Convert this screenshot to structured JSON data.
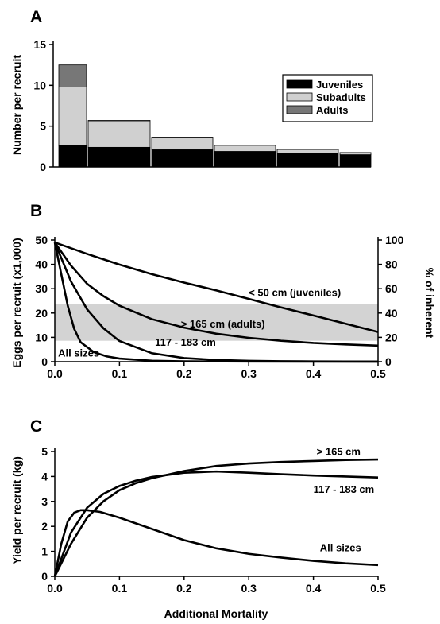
{
  "chart_data": [
    {
      "panel": "A",
      "type": "bar",
      "stacked": true,
      "ylabel": "Number per recruit",
      "ylim": [
        0,
        15
      ],
      "yticks": [
        0,
        5,
        10,
        15
      ],
      "categories": [
        "",
        "",
        "",
        "",
        "",
        ""
      ],
      "series": [
        {
          "name": "Juveniles",
          "color": "#000000",
          "values": [
            2.6,
            2.4,
            2.1,
            1.9,
            1.7,
            1.5
          ]
        },
        {
          "name": "Subadults",
          "color": "#d0d0d0",
          "values": [
            7.2,
            3.1,
            1.5,
            0.75,
            0.45,
            0.25
          ]
        },
        {
          "name": "Adults",
          "color": "#777777",
          "values": [
            2.7,
            0.2,
            0.05,
            0.03,
            0.02,
            0.01
          ]
        }
      ],
      "legend": "right"
    },
    {
      "panel": "B",
      "type": "line",
      "ylabel": "Eggs per recruit (x1,000)",
      "y2label": "% of inherent",
      "xlim": [
        0,
        0.5
      ],
      "xticks": [
        0.0,
        0.1,
        0.2,
        0.3,
        0.4,
        0.5
      ],
      "xtick_labels": [
        "0.0",
        "0.1",
        "0.2",
        "0.3",
        "0.4",
        "0.5"
      ],
      "ylim": [
        0,
        50
      ],
      "yticks": [
        0,
        10,
        20,
        30,
        40,
        50
      ],
      "y2ticks": [
        0,
        20,
        40,
        60,
        80,
        100
      ],
      "band": {
        "ymin": 8.6,
        "ymax": 23.8,
        "color": "#d3d3d3"
      },
      "series": [
        {
          "name": "< 50 cm (juveniles)",
          "x": [
            0,
            0.05,
            0.1,
            0.15,
            0.2,
            0.25,
            0.3,
            0.35,
            0.4,
            0.45,
            0.5
          ],
          "y": [
            49,
            44.3,
            39.9,
            36.0,
            32.5,
            29.3,
            25.8,
            22.3,
            19.0,
            15.6,
            12.2
          ]
        },
        {
          "name": "> 165 cm (adults)",
          "x": [
            0,
            0.025,
            0.05,
            0.075,
            0.1,
            0.15,
            0.2,
            0.25,
            0.3,
            0.35,
            0.4,
            0.45,
            0.5
          ],
          "y": [
            49,
            39.5,
            32.0,
            27.0,
            23.0,
            17.5,
            14.0,
            11.5,
            9.8,
            8.6,
            7.7,
            7.1,
            6.6
          ]
        },
        {
          "name": "117 - 183 cm",
          "x": [
            0,
            0.025,
            0.05,
            0.075,
            0.1,
            0.15,
            0.2,
            0.25,
            0.3,
            0.35,
            0.4,
            0.45,
            0.5
          ],
          "y": [
            49,
            33.0,
            21.5,
            13.8,
            8.5,
            3.5,
            1.5,
            0.7,
            0.35,
            0.2,
            0.1,
            0.05,
            0.03
          ]
        },
        {
          "name": "All sizes",
          "x": [
            0,
            0.01,
            0.02,
            0.03,
            0.04,
            0.06,
            0.08,
            0.1,
            0.15,
            0.2,
            0.3,
            0.4,
            0.5
          ],
          "y": [
            49,
            36.0,
            23.0,
            13.5,
            8.0,
            4.0,
            2.2,
            1.3,
            0.4,
            0.15,
            0.05,
            0.02,
            0.01
          ]
        }
      ],
      "annotations": [
        {
          "text": "< 50 cm (juveniles)",
          "x": 0.3,
          "y": 27.0
        },
        {
          "text": "> 165 cm (adults)",
          "x": 0.195,
          "y": 14.0
        },
        {
          "text": "117 - 183 cm",
          "x": 0.155,
          "y": 6.5
        },
        {
          "text": "All sizes",
          "x": 0.005,
          "y": 2.2
        }
      ]
    },
    {
      "panel": "C",
      "type": "line",
      "xlabel": "Additional Mortality",
      "ylabel": "Yield per recruit (kg)",
      "xlim": [
        0,
        0.5
      ],
      "xticks": [
        0.0,
        0.1,
        0.2,
        0.3,
        0.4,
        0.5
      ],
      "xtick_labels": [
        "0.0",
        "0.1",
        "0.2",
        "0.3",
        "0.4",
        "0.5"
      ],
      "ylim": [
        0,
        5
      ],
      "yticks": [
        0,
        1,
        2,
        3,
        4,
        5
      ],
      "series": [
        {
          "name": "> 165 cm",
          "x": [
            0,
            0.025,
            0.05,
            0.075,
            0.1,
            0.125,
            0.15,
            0.2,
            0.25,
            0.3,
            0.35,
            0.4,
            0.45,
            0.5
          ],
          "y": [
            0,
            1.3,
            2.35,
            3.0,
            3.45,
            3.73,
            3.93,
            4.22,
            4.42,
            4.52,
            4.58,
            4.62,
            4.66,
            4.68
          ]
        },
        {
          "name": "117 - 183 cm",
          "x": [
            0,
            0.025,
            0.05,
            0.075,
            0.1,
            0.125,
            0.15,
            0.2,
            0.25,
            0.3,
            0.35,
            0.4,
            0.45,
            0.5
          ],
          "y": [
            0,
            1.75,
            2.75,
            3.3,
            3.62,
            3.83,
            3.98,
            4.15,
            4.2,
            4.15,
            4.09,
            4.04,
            4.0,
            3.96
          ]
        },
        {
          "name": "All sizes",
          "x": [
            0,
            0.01,
            0.02,
            0.03,
            0.04,
            0.05,
            0.07,
            0.1,
            0.15,
            0.2,
            0.25,
            0.3,
            0.35,
            0.4,
            0.45,
            0.5
          ],
          "y": [
            0,
            1.3,
            2.2,
            2.55,
            2.65,
            2.65,
            2.58,
            2.35,
            1.9,
            1.45,
            1.12,
            0.9,
            0.75,
            0.62,
            0.52,
            0.45
          ]
        }
      ],
      "annotations": [
        {
          "text": "> 165 cm",
          "x": 0.405,
          "y": 4.85
        },
        {
          "text": "117 - 183 cm",
          "x": 0.4,
          "y": 3.35
        },
        {
          "text": "All sizes",
          "x": 0.41,
          "y": 1.0
        }
      ]
    }
  ]
}
